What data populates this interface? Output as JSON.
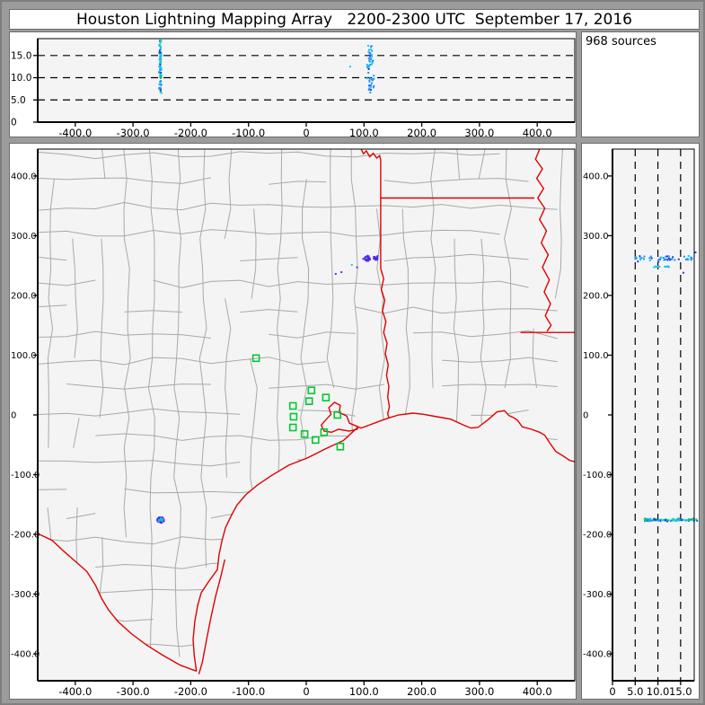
{
  "title": "Houston Lightning Mapping Array   2200-2300 UTC  September 17, 2016",
  "sources_label": "968 sources",
  "colors": {
    "plot_bg": "#f4f4f4",
    "frame_gray": "#9c9c9c",
    "county_line": "#a9a9a9",
    "state_border": "#e00000",
    "station_green": "#00c832",
    "axis_black": "#000000",
    "palette": {
      "green": "#00d23c",
      "cyan": "#16c8f0",
      "blue": "#2838e6",
      "purple": "#7d1ee6",
      "dodger": "#1e90ff"
    }
  },
  "axes": {
    "ew": {
      "min": -465,
      "max": 465,
      "ticks": [
        [
          "-400.0",
          -400
        ],
        [
          "-300.0",
          -300
        ],
        [
          "-200.0",
          -200
        ],
        [
          "-100.0",
          -100
        ],
        [
          "0",
          0
        ],
        [
          "100.0",
          100
        ],
        [
          "200.0",
          200
        ],
        [
          "300.0",
          300
        ],
        [
          "400.0",
          400
        ]
      ]
    },
    "ns": {
      "min": -445,
      "max": 445,
      "ticks": [
        [
          "400.0",
          400
        ],
        [
          "300.0",
          300
        ],
        [
          "200.0",
          200
        ],
        [
          "100.0",
          100
        ],
        [
          "0",
          0
        ],
        [
          "-100.0",
          -100
        ],
        [
          "-200.0",
          -200
        ],
        [
          "-300.0",
          -300
        ],
        [
          "-400.0",
          -400
        ]
      ]
    },
    "alt": {
      "min": 0,
      "max_top": 18.8,
      "max_right": 18.0,
      "ticks": [
        [
          "0",
          0
        ],
        [
          "5.0",
          5
        ],
        [
          "10.0",
          10
        ],
        [
          "15.0",
          15
        ]
      ],
      "gridlines": [
        5,
        10,
        15
      ]
    }
  },
  "chart_data": [
    {
      "panel": "alt-vs-east-west",
      "type": "scatter",
      "x_range": [
        -465,
        465
      ],
      "y_range": [
        0,
        18.8
      ],
      "x_ticks": [
        -400,
        -300,
        -200,
        -100,
        0,
        100,
        200,
        300,
        400
      ],
      "y_ticks": [
        0,
        5,
        10,
        15
      ],
      "gridlines_y_dashed": [
        5,
        10,
        15
      ],
      "clusters": [
        {
          "x": -252.5,
          "x_spread": 3.0,
          "alt": [
            6.5,
            18.6
          ],
          "count": 85,
          "colors": {
            "cyan": 0.5,
            "green": 0.18,
            "blue": 0.22,
            "dodger": 0.1
          }
        },
        {
          "x": 112,
          "x_spread": 9,
          "alt": [
            6.5,
            17.8
          ],
          "count": 50,
          "colors": {
            "dodger": 0.55,
            "cyan": 0.25,
            "blue": 0.2
          }
        }
      ],
      "points": [
        {
          "x": 76,
          "alt": 12.5,
          "color": "cyan"
        }
      ]
    },
    {
      "panel": "plan-view-map",
      "type": "scatter",
      "x_range": [
        -465,
        465
      ],
      "y_range": [
        -445,
        445
      ],
      "x_ticks": [
        -400,
        -300,
        -200,
        -100,
        0,
        100,
        200,
        300,
        400
      ],
      "y_ticks": [
        -400,
        -300,
        -200,
        -100,
        0,
        100,
        200,
        300,
        400
      ],
      "clusters": [
        {
          "x": -252,
          "y": -176,
          "count": 65,
          "rx": 6,
          "ry": 5,
          "shells": [
            [
              0.3,
              "green"
            ],
            [
              0.65,
              "cyan"
            ],
            [
              0.85,
              "blue"
            ],
            [
              1,
              "purple"
            ]
          ]
        },
        {
          "x": 105,
          "y": 262,
          "count": 28,
          "rx": 6.5,
          "ry": 4.5,
          "shells": [
            [
              0.75,
              "blue"
            ],
            [
              1,
              "purple"
            ]
          ]
        },
        {
          "x": 121,
          "y": 263,
          "count": 20,
          "rx": 5,
          "ry": 3.5,
          "shells": [
            [
              0.8,
              "blue"
            ],
            [
              1,
              "purple"
            ]
          ]
        }
      ],
      "points": [
        {
          "x": 79,
          "y": 251,
          "color": "cyan"
        },
        {
          "x": 61,
          "y": 239,
          "color": "purple"
        },
        {
          "x": 51,
          "y": 236,
          "color": "purple"
        },
        {
          "x": 88,
          "y": 247,
          "color": "purple"
        }
      ]
    },
    {
      "panel": "alt-vs-north-south",
      "type": "scatter",
      "x_range": [
        0,
        18.0
      ],
      "y_range": [
        -445,
        445
      ],
      "x_ticks": [
        0,
        5,
        10,
        15
      ],
      "y_ticks": [
        -400,
        -300,
        -200,
        -100,
        0,
        100,
        200,
        300,
        400
      ],
      "gridlines_x_dashed": [
        5,
        10,
        15
      ],
      "clusters": [
        {
          "y": -176,
          "y_spread": 3.5,
          "alt": [
            7,
            18.8
          ],
          "count": 90,
          "colors": {
            "cyan": 0.5,
            "green": 0.2,
            "blue": 0.2,
            "dodger": 0.1
          }
        },
        {
          "y": 262,
          "y_spread": 7,
          "alt": [
            5,
            17.5
          ],
          "count": 48,
          "colors": {
            "dodger": 0.55,
            "cyan": 0.25,
            "blue": 0.2
          }
        },
        {
          "y": 248,
          "y_spread": 1.2,
          "alt": [
            9,
            12.5
          ],
          "count": 12,
          "colors": {
            "cyan": 1
          }
        }
      ],
      "points": [
        {
          "y": 238,
          "alt": 15.6,
          "color": "blue"
        },
        {
          "y": 272,
          "alt": 18.3,
          "color": "blue"
        }
      ]
    }
  ],
  "stations": [
    [
      -87,
      95
    ],
    [
      9,
      41
    ],
    [
      34,
      29
    ],
    [
      5,
      23
    ],
    [
      -23,
      15
    ],
    [
      -22,
      -3
    ],
    [
      54,
      0
    ],
    [
      -23,
      -21
    ],
    [
      -3,
      -32
    ],
    [
      31,
      -29
    ],
    [
      16,
      -42
    ],
    [
      59,
      -53
    ]
  ],
  "map": {
    "county_grid": {
      "seed": 7,
      "cell_x": 44,
      "cell_y": 43,
      "jitter": 7,
      "skip_probability": 0.15
    },
    "state_borders": [
      {
        "name": "red-river-tx-ok",
        "points": [
          [
            95,
            445
          ],
          [
            99,
            437
          ],
          [
            104,
            442
          ],
          [
            110,
            432
          ],
          [
            116,
            438
          ],
          [
            122,
            430
          ],
          [
            127,
            434
          ],
          [
            129,
            427
          ]
        ]
      },
      {
        "name": "tx-east-line",
        "points": [
          [
            129,
            427
          ],
          [
            129,
            245
          ]
        ]
      },
      {
        "name": "sabine-river",
        "points": [
          [
            129,
            245
          ],
          [
            134,
            228
          ],
          [
            130,
            210
          ],
          [
            136,
            192
          ],
          [
            132,
            174
          ],
          [
            138,
            156
          ],
          [
            134,
            138
          ],
          [
            140,
            120
          ],
          [
            137,
            102
          ],
          [
            142,
            84
          ],
          [
            139,
            66
          ],
          [
            143,
            48
          ],
          [
            141,
            30
          ],
          [
            144,
            14
          ],
          [
            141,
            2
          ],
          [
            143,
            -5
          ]
        ]
      },
      {
        "name": "tx-gulf-coast",
        "points": [
          [
            143,
            -5
          ],
          [
            128,
            -10
          ],
          [
            112,
            -16
          ],
          [
            95,
            -22
          ],
          [
            90,
            -20
          ],
          [
            75,
            -14
          ],
          [
            70,
            -2
          ],
          [
            57,
            4
          ],
          [
            59,
            16
          ],
          [
            49,
            21
          ],
          [
            39,
            12
          ],
          [
            43,
            1
          ],
          [
            34,
            -8
          ],
          [
            26,
            -17
          ],
          [
            31,
            -27
          ],
          [
            44,
            -29
          ],
          [
            56,
            -24
          ],
          [
            74,
            -27
          ],
          [
            88,
            -24
          ],
          [
            90,
            -20
          ],
          [
            64,
            -43
          ],
          [
            33,
            -57
          ],
          [
            2,
            -72
          ],
          [
            -30,
            -84
          ],
          [
            -61,
            -102
          ],
          [
            -84,
            -117
          ],
          [
            -104,
            -133
          ],
          [
            -120,
            -151
          ],
          [
            -130,
            -169
          ],
          [
            -140,
            -189
          ],
          [
            -146,
            -211
          ],
          [
            -151,
            -234
          ],
          [
            -154,
            -259
          ],
          [
            -169,
            -279
          ],
          [
            -182,
            -298
          ],
          [
            -188,
            -319
          ],
          [
            -193,
            -346
          ],
          [
            -196,
            -376
          ],
          [
            -194,
            -403
          ],
          [
            -190,
            -429
          ]
        ]
      },
      {
        "name": "rio-grande",
        "points": [
          [
            -464,
            -199
          ],
          [
            -440,
            -210
          ],
          [
            -420,
            -228
          ],
          [
            -400,
            -245
          ],
          [
            -380,
            -262
          ],
          [
            -365,
            -285
          ],
          [
            -354,
            -308
          ],
          [
            -342,
            -327
          ],
          [
            -326,
            -346
          ],
          [
            -303,
            -366
          ],
          [
            -277,
            -385
          ],
          [
            -249,
            -402
          ],
          [
            -218,
            -419
          ],
          [
            -190,
            -429
          ]
        ]
      },
      {
        "name": "padre-island",
        "points": [
          [
            -141,
            -242
          ],
          [
            -148,
            -271
          ],
          [
            -157,
            -304
          ],
          [
            -165,
            -339
          ],
          [
            -172,
            -373
          ],
          [
            -180,
            -414
          ],
          [
            -186,
            -434
          ]
        ]
      },
      {
        "name": "la-ar-border-33n",
        "points": [
          [
            129,
            363
          ],
          [
            395,
            363
          ]
        ]
      },
      {
        "name": "mississippi-river",
        "points": [
          [
            404,
            445
          ],
          [
            397,
            428
          ],
          [
            409,
            412
          ],
          [
            399,
            396
          ],
          [
            411,
            379
          ],
          [
            401,
            363
          ],
          [
            413,
            346
          ],
          [
            404,
            327
          ],
          [
            416,
            308
          ],
          [
            407,
            288
          ],
          [
            419,
            268
          ],
          [
            409,
            247
          ],
          [
            421,
            226
          ],
          [
            412,
            206
          ],
          [
            423,
            186
          ],
          [
            414,
            166
          ],
          [
            424,
            150
          ],
          [
            417,
            140
          ]
        ]
      },
      {
        "name": "la-ms-border-31n",
        "points": [
          [
            371,
            138
          ],
          [
            465,
            138
          ]
        ]
      },
      {
        "name": "la-gulf-coast",
        "points": [
          [
            143,
            -5
          ],
          [
            160,
            0
          ],
          [
            185,
            3
          ],
          [
            203,
            1
          ],
          [
            226,
            -3
          ],
          [
            250,
            -7
          ],
          [
            270,
            -16
          ],
          [
            285,
            -22
          ],
          [
            297,
            -21
          ],
          [
            315,
            -8
          ],
          [
            330,
            5
          ],
          [
            343,
            7
          ],
          [
            351,
            -1
          ],
          [
            360,
            -5
          ],
          [
            366,
            -9
          ],
          [
            374,
            -20
          ],
          [
            390,
            -24
          ],
          [
            404,
            -29
          ],
          [
            413,
            -34
          ],
          [
            421,
            -46
          ],
          [
            432,
            -61
          ],
          [
            447,
            -70
          ],
          [
            456,
            -76
          ],
          [
            467,
            -79
          ]
        ]
      }
    ],
    "water": [
      {
        "name": "gulf-of-mexico",
        "points": [
          [
            143,
            -5
          ],
          [
            160,
            0
          ],
          [
            185,
            3
          ],
          [
            203,
            1
          ],
          [
            226,
            -3
          ],
          [
            250,
            -7
          ],
          [
            270,
            -16
          ],
          [
            285,
            -22
          ],
          [
            297,
            -21
          ],
          [
            315,
            -8
          ],
          [
            330,
            5
          ],
          [
            343,
            7
          ],
          [
            351,
            -1
          ],
          [
            360,
            -5
          ],
          [
            366,
            -9
          ],
          [
            374,
            -20
          ],
          [
            390,
            -24
          ],
          [
            404,
            -29
          ],
          [
            413,
            -34
          ],
          [
            421,
            -46
          ],
          [
            432,
            -61
          ],
          [
            447,
            -70
          ],
          [
            456,
            -76
          ],
          [
            467,
            -79
          ],
          [
            467,
            -445
          ],
          [
            -190,
            -445
          ],
          [
            -190,
            -429
          ],
          [
            -194,
            -403
          ],
          [
            -196,
            -376
          ],
          [
            -193,
            -346
          ],
          [
            -188,
            -319
          ],
          [
            -182,
            -298
          ],
          [
            -169,
            -279
          ],
          [
            -154,
            -259
          ],
          [
            -151,
            -234
          ],
          [
            -146,
            -211
          ],
          [
            -140,
            -189
          ],
          [
            -130,
            -169
          ],
          [
            -120,
            -151
          ],
          [
            -104,
            -133
          ],
          [
            -84,
            -117
          ],
          [
            -61,
            -102
          ],
          [
            -30,
            -84
          ],
          [
            2,
            -72
          ],
          [
            33,
            -57
          ],
          [
            64,
            -43
          ],
          [
            90,
            -20
          ],
          [
            95,
            -22
          ],
          [
            112,
            -16
          ],
          [
            128,
            -10
          ],
          [
            143,
            -5
          ]
        ]
      },
      {
        "name": "mexico-mask",
        "points": [
          [
            -464,
            -199
          ],
          [
            -440,
            -210
          ],
          [
            -420,
            -228
          ],
          [
            -400,
            -245
          ],
          [
            -380,
            -262
          ],
          [
            -365,
            -285
          ],
          [
            -354,
            -308
          ],
          [
            -342,
            -327
          ],
          [
            -326,
            -346
          ],
          [
            -303,
            -366
          ],
          [
            -277,
            -385
          ],
          [
            -249,
            -402
          ],
          [
            -218,
            -419
          ],
          [
            -190,
            -429
          ],
          [
            -190,
            -445
          ],
          [
            -465,
            -445
          ],
          [
            -465,
            -199
          ]
        ]
      }
    ]
  }
}
